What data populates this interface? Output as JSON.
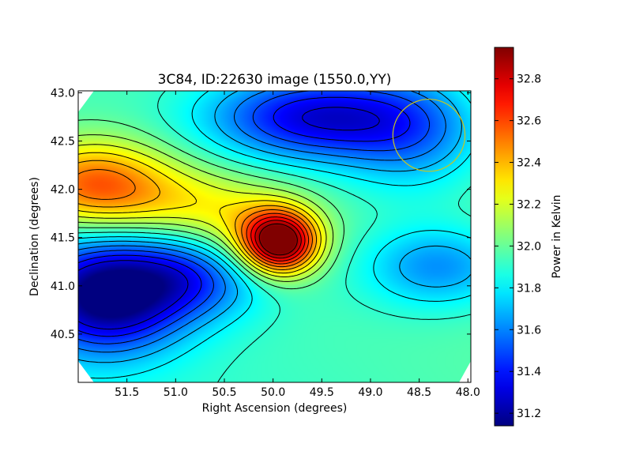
{
  "chart_data": {
    "type": "heatmap",
    "title": "3C84, ID:22630 image (1550.0,YY)",
    "xlabel": "Right Ascension (degrees)",
    "ylabel": "Declination (degrees)",
    "colorbar_label": "Power in Kelvin",
    "colormap": "jet",
    "xlim": [
      52.0,
      47.97
    ],
    "ylim": [
      40.0,
      43.02
    ],
    "x_ticks": [
      51.5,
      51.0,
      50.5,
      50.0,
      49.5,
      49.0,
      48.5,
      48.0
    ],
    "x_tick_labels": [
      "51.5",
      "51.0",
      "50.5",
      "50.0",
      "49.5",
      "49.0",
      "48.5",
      "48.0"
    ],
    "y_ticks": [
      40.5,
      41.0,
      41.5,
      42.0,
      42.5,
      43.0
    ],
    "y_tick_labels": [
      "40.5",
      "41.0",
      "41.5",
      "42.0",
      "42.5",
      "43.0"
    ],
    "color_range": [
      31.14,
      32.95
    ],
    "colorbar_ticks": [
      31.2,
      31.4,
      31.6,
      31.8,
      32.0,
      32.2,
      32.4,
      32.6,
      32.8
    ],
    "colorbar_tick_labels": [
      "31.2",
      "31.4",
      "31.6",
      "31.8",
      "32.0",
      "32.2",
      "32.4",
      "32.6",
      "32.8"
    ],
    "contour_levels": [
      31.3,
      31.4,
      31.5,
      31.6,
      31.7,
      31.8,
      31.9,
      32.0,
      32.1,
      32.2,
      32.3,
      32.4,
      32.5,
      32.6,
      32.7,
      32.8,
      32.9
    ],
    "contour_color": "#000000",
    "background_model": {
      "base": 31.95,
      "ra_slope": -0.02,
      "dec_slope": 0.02,
      "ra_center": 50.0,
      "dec_center": 41.5
    },
    "features": [
      {
        "kind": "peak",
        "ra": 49.93,
        "dec": 41.45,
        "amplitude": 0.98,
        "sigma_ra": 0.26,
        "sigma_dec": 0.22
      },
      {
        "kind": "peak",
        "ra": 50.15,
        "dec": 41.55,
        "amplitude": 0.3,
        "sigma_ra": 0.45,
        "sigma_dec": 0.3
      },
      {
        "kind": "peak",
        "ra": 51.85,
        "dec": 42.05,
        "amplitude": 0.62,
        "sigma_ra": 0.55,
        "sigma_dec": 0.32
      },
      {
        "kind": "peak",
        "ra": 50.9,
        "dec": 41.85,
        "amplitude": 0.25,
        "sigma_ra": 0.55,
        "sigma_dec": 0.28
      },
      {
        "kind": "trough",
        "ra": 51.7,
        "dec": 40.9,
        "amplitude": -0.85,
        "sigma_ra": 0.55,
        "sigma_dec": 0.4
      },
      {
        "kind": "trough",
        "ra": 50.8,
        "dec": 41.1,
        "amplitude": -0.4,
        "sigma_ra": 0.5,
        "sigma_dec": 0.3
      },
      {
        "kind": "trough",
        "ra": 49.6,
        "dec": 42.75,
        "amplitude": -0.65,
        "sigma_ra": 0.75,
        "sigma_dec": 0.32
      },
      {
        "kind": "trough",
        "ra": 48.55,
        "dec": 42.6,
        "amplitude": -0.35,
        "sigma_ra": 0.55,
        "sigma_dec": 0.45
      },
      {
        "kind": "trough",
        "ra": 48.3,
        "dec": 41.2,
        "amplitude": -0.35,
        "sigma_ra": 0.55,
        "sigma_dec": 0.3
      }
    ],
    "beam_circle": {
      "ra": 48.4,
      "dec": 42.56,
      "radius_deg": 0.37,
      "color": "#c8c81e"
    },
    "corner_cutoffs": true,
    "grid": false
  }
}
